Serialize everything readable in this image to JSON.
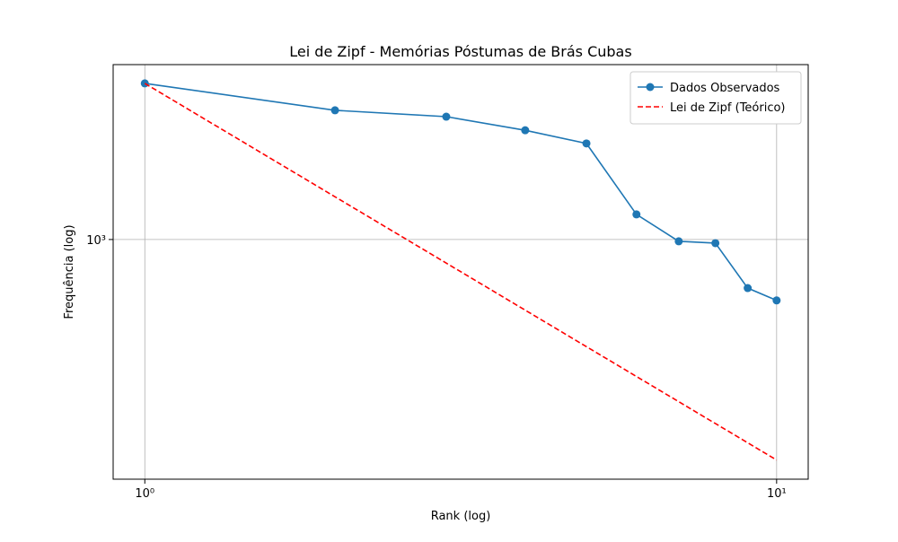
{
  "chart_data": {
    "type": "line",
    "title": "Lei de Zipf - Memórias Póstumas de Brás Cubas",
    "xlabel": "Rank (log)",
    "ylabel": "Frequência (log)",
    "x": [
      1,
      2,
      3,
      4,
      5,
      6,
      7,
      8,
      9,
      10
    ],
    "series": [
      {
        "name": "Dados Observados",
        "color": "#1f77b4",
        "style": "solid",
        "marker": true,
        "values": [
          2597,
          2203,
          2119,
          1950,
          1799,
          1166,
          989,
          978,
          743,
          689
        ]
      },
      {
        "name": "Lei de Zipf (Teórico)",
        "color": "#ff0000",
        "style": "dashed",
        "marker": false,
        "values": [
          2597,
          1298.5,
          865.7,
          649.25,
          519.4,
          432.8,
          371,
          324.6,
          288.6,
          259.7
        ]
      }
    ],
    "xscale": "log",
    "yscale": "log",
    "xlim": [
      0.891,
      11.22
    ],
    "ylim": [
      231,
      2913
    ],
    "xticks": [
      {
        "value": 1,
        "label": "10⁰"
      },
      {
        "value": 10,
        "label": "10¹"
      }
    ],
    "yticks": [
      {
        "value": 1000,
        "label": "10³"
      }
    ],
    "grid": true,
    "legend": "upper right"
  }
}
